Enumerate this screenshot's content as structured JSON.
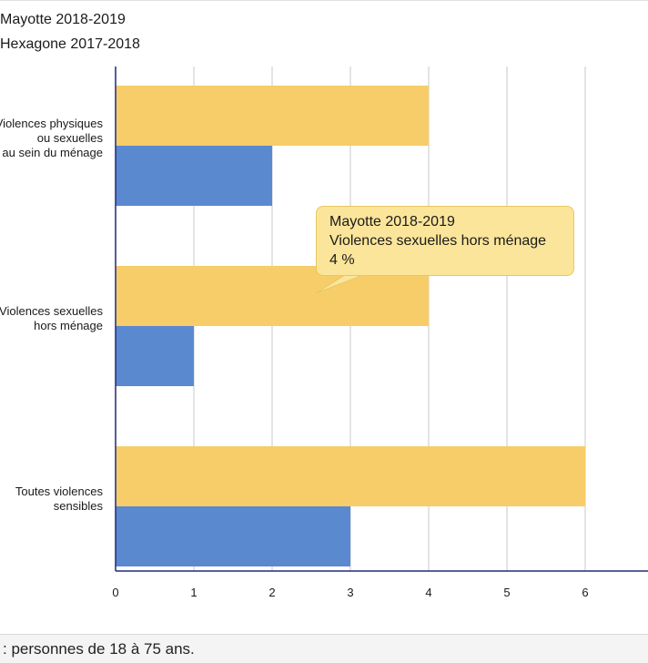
{
  "legend": [
    {
      "label": "Mayotte 2018-2019",
      "color": "#f6cd69"
    },
    {
      "label": "Hexagone 2017-2018",
      "color": "#5b89d0"
    }
  ],
  "chart_data": {
    "type": "bar",
    "orientation": "horizontal",
    "categories": [
      [
        "Violences physiques",
        "ou sexuelles",
        "au sein du ménage"
      ],
      [
        "Violences sexuelles",
        "hors ménage"
      ],
      [
        "Toutes violences",
        "sensibles"
      ]
    ],
    "series": [
      {
        "name": "Mayotte 2018-2019",
        "values": [
          4,
          4,
          6
        ],
        "color": "#f6cd69"
      },
      {
        "name": "Hexagone 2017-2018",
        "values": [
          2,
          1,
          3
        ],
        "color": "#5b89d0"
      }
    ],
    "xticks": [
      0,
      1,
      2,
      3,
      4,
      5,
      6
    ],
    "xlim": [
      0,
      6.8
    ],
    "grid": true
  },
  "tooltip": {
    "series": "Mayotte 2018-2019",
    "category": "Violences sexuelles hors ménage",
    "value": "4 %"
  },
  "footer": {
    "text": ": personnes de 18 à 75 ans."
  }
}
